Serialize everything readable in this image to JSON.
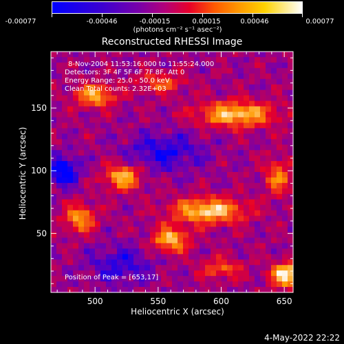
{
  "colorbar": {
    "ticks": [
      "-0.00077",
      "-0.00046",
      "-0.00015",
      "0.00015",
      "0.00046",
      "0.00077"
    ],
    "units": "(photons cm⁻² s⁻¹ asec⁻²)"
  },
  "chart_data": {
    "type": "heatmap",
    "title": "Reconstructed RHESSI Image",
    "xlabel": "Heliocentric X (arcsec)",
    "ylabel": "Heliocentric Y (arcsec)",
    "xlim": [
      465,
      657
    ],
    "ylim": [
      3,
      195
    ],
    "xticks": [
      "500",
      "550",
      "600",
      "650"
    ],
    "xtick_values": [
      500,
      550,
      600,
      650
    ],
    "yticks": [
      "50",
      "100",
      "150"
    ],
    "ytick_values": [
      50,
      100,
      150
    ],
    "zlim": [
      -0.00077,
      0.00077
    ],
    "colormap": [
      "#0000ff",
      "#7a00a8",
      "#e80028",
      "#ff9a00",
      "#ffffff"
    ],
    "sources": [
      {
        "x": 652,
        "y": 17,
        "amp": 1.0,
        "sx": 12,
        "sy": 9
      },
      {
        "x": 590,
        "y": 68,
        "amp": 0.85,
        "sx": 28,
        "sy": 10
      },
      {
        "x": 560,
        "y": 45,
        "amp": 0.75,
        "sx": 14,
        "sy": 10
      },
      {
        "x": 522,
        "y": 95,
        "amp": 0.75,
        "sx": 14,
        "sy": 10
      },
      {
        "x": 488,
        "y": 62,
        "amp": 0.65,
        "sx": 12,
        "sy": 11
      },
      {
        "x": 612,
        "y": 145,
        "amp": 0.8,
        "sx": 30,
        "sy": 10
      },
      {
        "x": 500,
        "y": 160,
        "amp": 0.7,
        "sx": 16,
        "sy": 9
      },
      {
        "x": 645,
        "y": 95,
        "amp": 0.55,
        "sx": 10,
        "sy": 14
      },
      {
        "x": 552,
        "y": 170,
        "amp": 0.45,
        "sx": 18,
        "sy": 8
      },
      {
        "x": 600,
        "y": 22,
        "amp": 0.45,
        "sx": 16,
        "sy": 8
      },
      {
        "x": 475,
        "y": 100,
        "amp": -0.6,
        "sx": 12,
        "sy": 12
      },
      {
        "x": 555,
        "y": 115,
        "amp": -0.4,
        "sx": 30,
        "sy": 15
      },
      {
        "x": 520,
        "y": 25,
        "amp": -0.35,
        "sx": 25,
        "sy": 15
      }
    ],
    "annotations": {
      "time": "8-Nov-2004 11:53:16.000 to 11:55:24.000",
      "detectors": "Detectors: 3F 4F 5F 6F 7F 8F, Att 0",
      "energy": "Energy Range: 25.0 - 50.0 keV",
      "clean": "Clean      Total counts: 2.32E+03",
      "peak": "Position of Peak = [653,17]"
    }
  },
  "footer": {
    "date": "4-May-2022 22:22"
  }
}
